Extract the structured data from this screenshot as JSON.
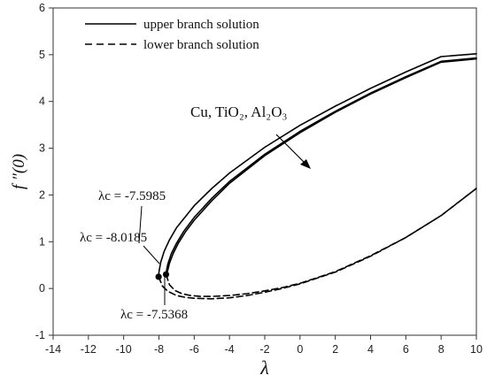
{
  "chart_data": {
    "type": "line",
    "title": "",
    "xlabel": "λ",
    "ylabel": "f ″(0)",
    "xlim": [
      -14,
      10
    ],
    "ylim": [
      -1,
      6
    ],
    "x_ticks": [
      "-14",
      "-12",
      "-10",
      "-8",
      "-6",
      "-4",
      "-2",
      "0",
      "2",
      "4",
      "6",
      "8",
      "10"
    ],
    "y_ticks": [
      "-1",
      "0",
      "1",
      "2",
      "3",
      "4",
      "5",
      "6"
    ],
    "grid": false,
    "legend": {
      "placement": "top-left",
      "entries": [
        {
          "label": "upper branch solution",
          "style": "solid"
        },
        {
          "label": "lower branch solution",
          "style": "dashed"
        }
      ]
    },
    "series": [
      {
        "branch": "upper",
        "style": "solid",
        "lambda_c": -8.0185,
        "x": [
          -8.0185,
          -8.0,
          -7.9,
          -7.7,
          -7.4,
          -7.0,
          -6.0,
          -5.0,
          -4.0,
          -2.0,
          0.0,
          2.0,
          4.0,
          6.0,
          8.0,
          10.0
        ],
        "y": [
          0.25,
          0.35,
          0.56,
          0.8,
          1.04,
          1.3,
          1.77,
          2.14,
          2.47,
          3.02,
          3.49,
          3.9,
          4.28,
          4.63,
          4.96,
          5.02
        ]
      },
      {
        "branch": "upper",
        "style": "solid",
        "lambda_c": -7.5985,
        "x": [
          -7.5985,
          -7.58,
          -7.5,
          -7.3,
          -7.0,
          -6.6,
          -6.0,
          -5.0,
          -4.0,
          -2.0,
          0.0,
          2.0,
          4.0,
          6.0,
          8.0,
          10.0
        ],
        "y": [
          0.3,
          0.37,
          0.52,
          0.74,
          0.97,
          1.22,
          1.52,
          1.93,
          2.29,
          2.87,
          3.36,
          3.79,
          4.18,
          4.53,
          4.86,
          4.93
        ]
      },
      {
        "branch": "lower",
        "style": "dashed",
        "lambda_c": -8.0185,
        "x": [
          -8.0185,
          -7.8,
          -7.5,
          -7.0,
          -6.5,
          -6.0,
          -5.0,
          -4.0,
          -3.0,
          -2.0,
          -1.0,
          0.0,
          2.0,
          4.0,
          6.0,
          8.0,
          10.0
        ],
        "y": [
          0.25,
          0.05,
          -0.06,
          -0.15,
          -0.19,
          -0.21,
          -0.22,
          -0.2,
          -0.15,
          -0.08,
          0.0,
          0.1,
          0.35,
          0.69,
          1.09,
          1.56,
          2.14
        ]
      },
      {
        "branch": "lower",
        "style": "dashed",
        "lambda_c": -7.5985,
        "x": [
          -7.5985,
          -7.4,
          -7.1,
          -6.7,
          -6.2,
          -5.6,
          -5.0,
          -4.0,
          -3.0,
          -2.0,
          -1.0,
          0.0,
          2.0,
          4.0,
          6.0,
          8.0,
          10.0
        ],
        "y": [
          0.3,
          0.08,
          -0.04,
          -0.11,
          -0.15,
          -0.17,
          -0.17,
          -0.15,
          -0.11,
          -0.05,
          0.02,
          0.11,
          0.36,
          0.7,
          1.09,
          1.56,
          2.14
        ]
      },
      {
        "branch": "upper",
        "style": "solid",
        "lambda_c": -7.5368,
        "x": [
          -7.5368,
          -7.52,
          -7.4,
          -7.2,
          -6.9,
          -6.5,
          -6.0,
          -5.0,
          -4.0,
          -2.0,
          0.0,
          2.0,
          4.0,
          6.0,
          8.0,
          10.0
        ],
        "y": [
          0.29,
          0.36,
          0.54,
          0.74,
          0.97,
          1.21,
          1.46,
          1.88,
          2.25,
          2.84,
          3.33,
          3.77,
          4.16,
          4.51,
          4.84,
          4.91
        ]
      }
    ],
    "critical_points": [
      {
        "x": -8.0185,
        "y": 0.25
      },
      {
        "x": -7.5985,
        "y": 0.3
      }
    ],
    "annotations": {
      "materials": "Cu, TiO₂, Al₂O₃",
      "lc1": "λc = -7.5985",
      "lc2": "λc = -8.0185",
      "lc3": "λc = -7.5368"
    }
  }
}
